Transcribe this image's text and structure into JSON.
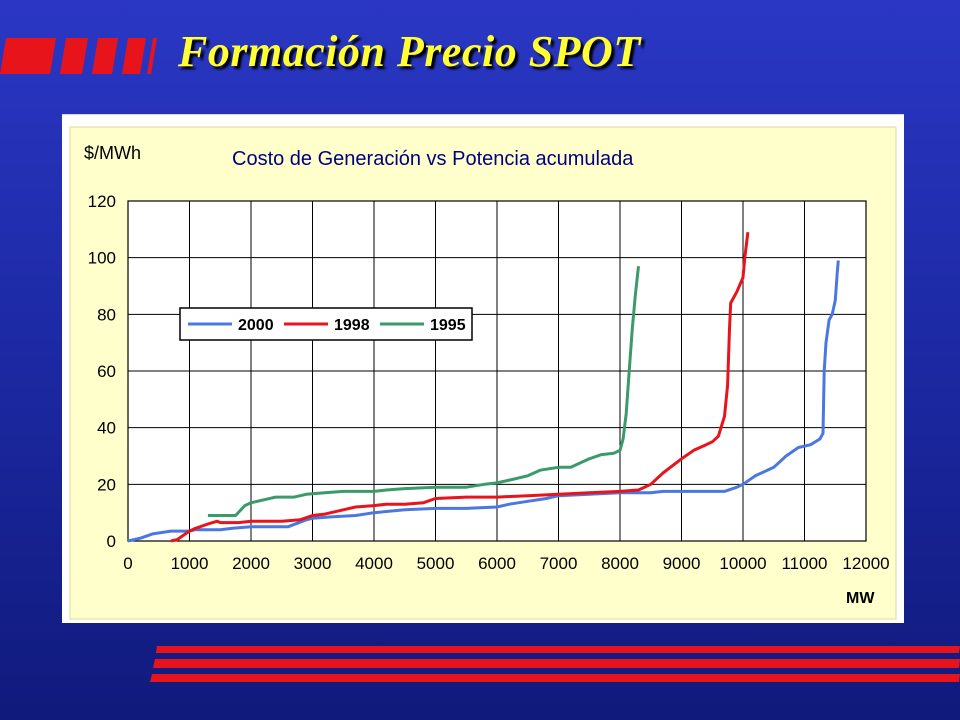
{
  "slide": {
    "title": "Formación Precio SPOT"
  },
  "colors": {
    "background": "#1d2aa6",
    "title": "#ffff33",
    "accent_stripes": "#e8141c",
    "chart_background": "#ffffcc",
    "plot_background": "#ffffff"
  },
  "chart_data": {
    "type": "line",
    "title": "Costo de Generación vs Potencia acumulada",
    "ylabel": "$/MWh",
    "xlabel": "MW",
    "xlim": [
      0,
      12000
    ],
    "ylim": [
      0,
      120
    ],
    "x_ticks": [
      0,
      1000,
      2000,
      3000,
      4000,
      5000,
      6000,
      7000,
      8000,
      9000,
      10000,
      11000,
      12000
    ],
    "y_ticks": [
      0,
      20,
      40,
      60,
      80,
      100,
      120
    ],
    "grid": true,
    "legend": "upper-left",
    "series": [
      {
        "name": "2000",
        "color": "#4a78e0",
        "points": [
          [
            0,
            0
          ],
          [
            200,
            1
          ],
          [
            400,
            2.5
          ],
          [
            700,
            3.5
          ],
          [
            1000,
            3.5
          ],
          [
            1100,
            4
          ],
          [
            1500,
            4
          ],
          [
            1700,
            4.5
          ],
          [
            2000,
            5
          ],
          [
            2600,
            5
          ],
          [
            2900,
            7.5
          ],
          [
            3000,
            8
          ],
          [
            3300,
            8.5
          ],
          [
            3700,
            9
          ],
          [
            4000,
            10
          ],
          [
            4500,
            11
          ],
          [
            5000,
            11.5
          ],
          [
            5500,
            11.5
          ],
          [
            6000,
            12
          ],
          [
            6200,
            13
          ],
          [
            6500,
            14
          ],
          [
            6800,
            15
          ],
          [
            7000,
            16
          ],
          [
            7500,
            16.5
          ],
          [
            8000,
            17
          ],
          [
            8500,
            17
          ],
          [
            8700,
            17.5
          ],
          [
            9000,
            17.5
          ],
          [
            9500,
            17.5
          ],
          [
            9700,
            17.5
          ],
          [
            9900,
            19
          ],
          [
            10000,
            20
          ],
          [
            10200,
            23
          ],
          [
            10500,
            26
          ],
          [
            10700,
            30
          ],
          [
            10900,
            33
          ],
          [
            11100,
            34
          ],
          [
            11250,
            36
          ],
          [
            11300,
            38
          ],
          [
            11320,
            60
          ],
          [
            11350,
            70
          ],
          [
            11400,
            78
          ],
          [
            11450,
            80
          ],
          [
            11500,
            85
          ],
          [
            11530,
            94
          ],
          [
            11550,
            99
          ]
        ]
      },
      {
        "name": "1998",
        "color": "#e8141c",
        "points": [
          [
            700,
            0
          ],
          [
            800,
            0.5
          ],
          [
            900,
            2
          ],
          [
            1000,
            3.5
          ],
          [
            1100,
            4.5
          ],
          [
            1300,
            6
          ],
          [
            1450,
            7
          ],
          [
            1500,
            6.5
          ],
          [
            1800,
            6.5
          ],
          [
            2000,
            7
          ],
          [
            2500,
            7
          ],
          [
            2800,
            7.5
          ],
          [
            3000,
            9
          ],
          [
            3200,
            9.5
          ],
          [
            3500,
            11
          ],
          [
            3700,
            12
          ],
          [
            4000,
            12.5
          ],
          [
            4200,
            13
          ],
          [
            4500,
            13
          ],
          [
            4800,
            13.5
          ],
          [
            5000,
            15
          ],
          [
            5500,
            15.5
          ],
          [
            6000,
            15.5
          ],
          [
            6500,
            16
          ],
          [
            7000,
            16.5
          ],
          [
            7500,
            17
          ],
          [
            8000,
            17.5
          ],
          [
            8300,
            18
          ],
          [
            8500,
            20
          ],
          [
            8700,
            24
          ],
          [
            9000,
            29
          ],
          [
            9200,
            32
          ],
          [
            9400,
            34
          ],
          [
            9500,
            35
          ],
          [
            9600,
            37
          ],
          [
            9700,
            44
          ],
          [
            9750,
            55
          ],
          [
            9780,
            75
          ],
          [
            9800,
            84
          ],
          [
            9900,
            88
          ],
          [
            10000,
            93
          ],
          [
            10030,
            100
          ],
          [
            10080,
            109
          ]
        ]
      },
      {
        "name": "1995",
        "color": "#3a9a6a",
        "points": [
          [
            1300,
            9
          ],
          [
            1500,
            9
          ],
          [
            1750,
            9
          ],
          [
            1900,
            12.5
          ],
          [
            2000,
            13.5
          ],
          [
            2200,
            14.5
          ],
          [
            2400,
            15.5
          ],
          [
            2700,
            15.5
          ],
          [
            2900,
            16.5
          ],
          [
            3200,
            17
          ],
          [
            3500,
            17.5
          ],
          [
            4000,
            17.5
          ],
          [
            4200,
            18
          ],
          [
            4500,
            18.5
          ],
          [
            5000,
            19
          ],
          [
            5500,
            19
          ],
          [
            5800,
            20
          ],
          [
            6000,
            20.5
          ],
          [
            6200,
            21.5
          ],
          [
            6500,
            23
          ],
          [
            6700,
            25
          ],
          [
            7000,
            26
          ],
          [
            7200,
            26
          ],
          [
            7500,
            29
          ],
          [
            7700,
            30.5
          ],
          [
            7900,
            31
          ],
          [
            8000,
            32
          ],
          [
            8050,
            36
          ],
          [
            8100,
            45
          ],
          [
            8150,
            60
          ],
          [
            8200,
            75
          ],
          [
            8250,
            87
          ],
          [
            8300,
            97
          ]
        ]
      }
    ]
  }
}
